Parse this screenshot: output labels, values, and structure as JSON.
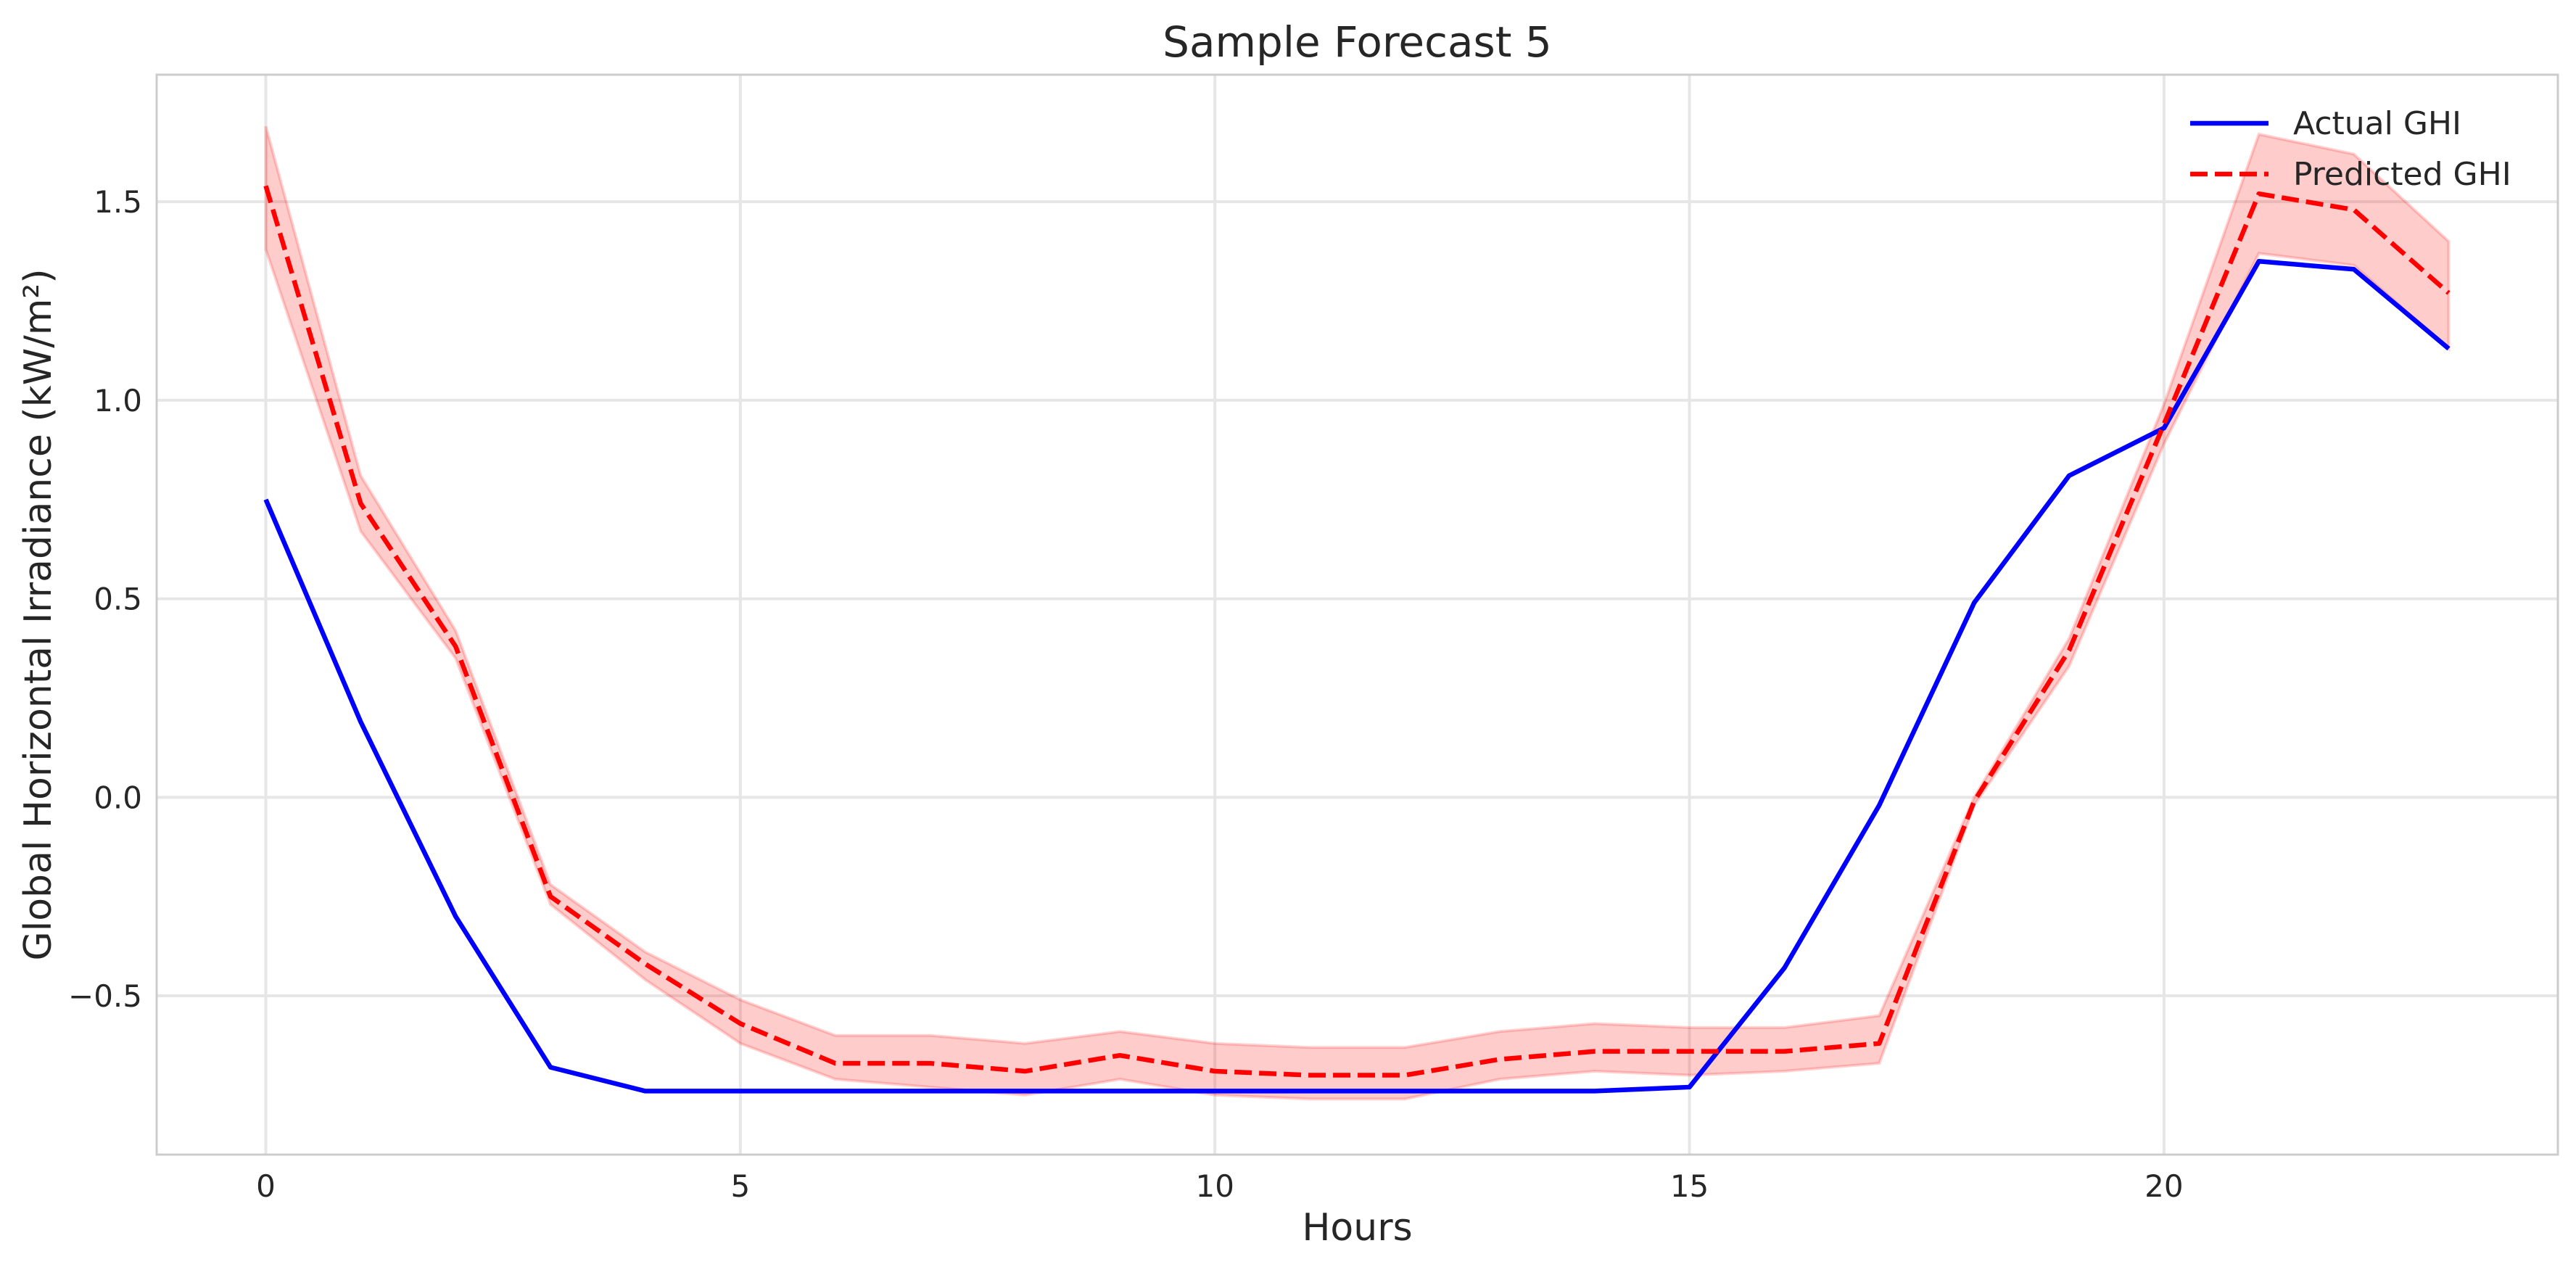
{
  "chart_data": {
    "type": "line",
    "title": "Sample Forecast 5",
    "xlabel": "Hours",
    "ylabel": "Global Horizontal Irradiance (kW/m²)",
    "xlim": [
      -1.15,
      24.15
    ],
    "ylim": [
      -0.9,
      1.82
    ],
    "x_ticks": [
      0,
      5,
      10,
      15,
      20
    ],
    "x_tick_labels": [
      "0",
      "5",
      "10",
      "15",
      "20"
    ],
    "y_ticks": [
      -0.5,
      0.0,
      0.5,
      1.0,
      1.5
    ],
    "y_tick_labels": [
      "−0.5",
      "0.0",
      "0.5",
      "1.0",
      "1.5"
    ],
    "grid": true,
    "legend_position": "top-right",
    "x": [
      0,
      1,
      2,
      3,
      4,
      5,
      6,
      7,
      8,
      9,
      10,
      11,
      12,
      13,
      14,
      15,
      16,
      17,
      18,
      19,
      20,
      21,
      22,
      23
    ],
    "series": [
      {
        "name": "Actual GHI",
        "color": "#0000ff",
        "style": "solid",
        "values": [
          0.75,
          0.19,
          -0.3,
          -0.68,
          -0.74,
          -0.74,
          -0.74,
          -0.74,
          -0.74,
          -0.74,
          -0.74,
          -0.74,
          -0.74,
          -0.74,
          -0.74,
          -0.73,
          -0.43,
          -0.02,
          0.49,
          0.81,
          0.93,
          1.35,
          1.33,
          1.13
        ]
      },
      {
        "name": "Predicted GHI",
        "color": "#ff0000",
        "style": "dashed",
        "values": [
          1.54,
          0.74,
          0.38,
          -0.25,
          -0.42,
          -0.57,
          -0.67,
          -0.67,
          -0.69,
          -0.65,
          -0.69,
          -0.7,
          -0.7,
          -0.66,
          -0.64,
          -0.64,
          -0.64,
          -0.62,
          -0.01,
          0.37,
          0.94,
          1.52,
          1.48,
          1.27
        ],
        "band_lower": [
          1.38,
          0.67,
          0.35,
          -0.27,
          -0.46,
          -0.62,
          -0.71,
          -0.73,
          -0.75,
          -0.71,
          -0.75,
          -0.76,
          -0.76,
          -0.71,
          -0.69,
          -0.7,
          -0.69,
          -0.67,
          -0.02,
          0.33,
          0.89,
          1.37,
          1.34,
          1.13
        ],
        "band_upper": [
          1.69,
          0.81,
          0.42,
          -0.22,
          -0.39,
          -0.51,
          -0.6,
          -0.6,
          -0.62,
          -0.59,
          -0.62,
          -0.63,
          -0.63,
          -0.59,
          -0.57,
          -0.58,
          -0.58,
          -0.55,
          0.0,
          0.4,
          0.99,
          1.67,
          1.62,
          1.4
        ],
        "band_color": "#ff0000"
      }
    ]
  }
}
